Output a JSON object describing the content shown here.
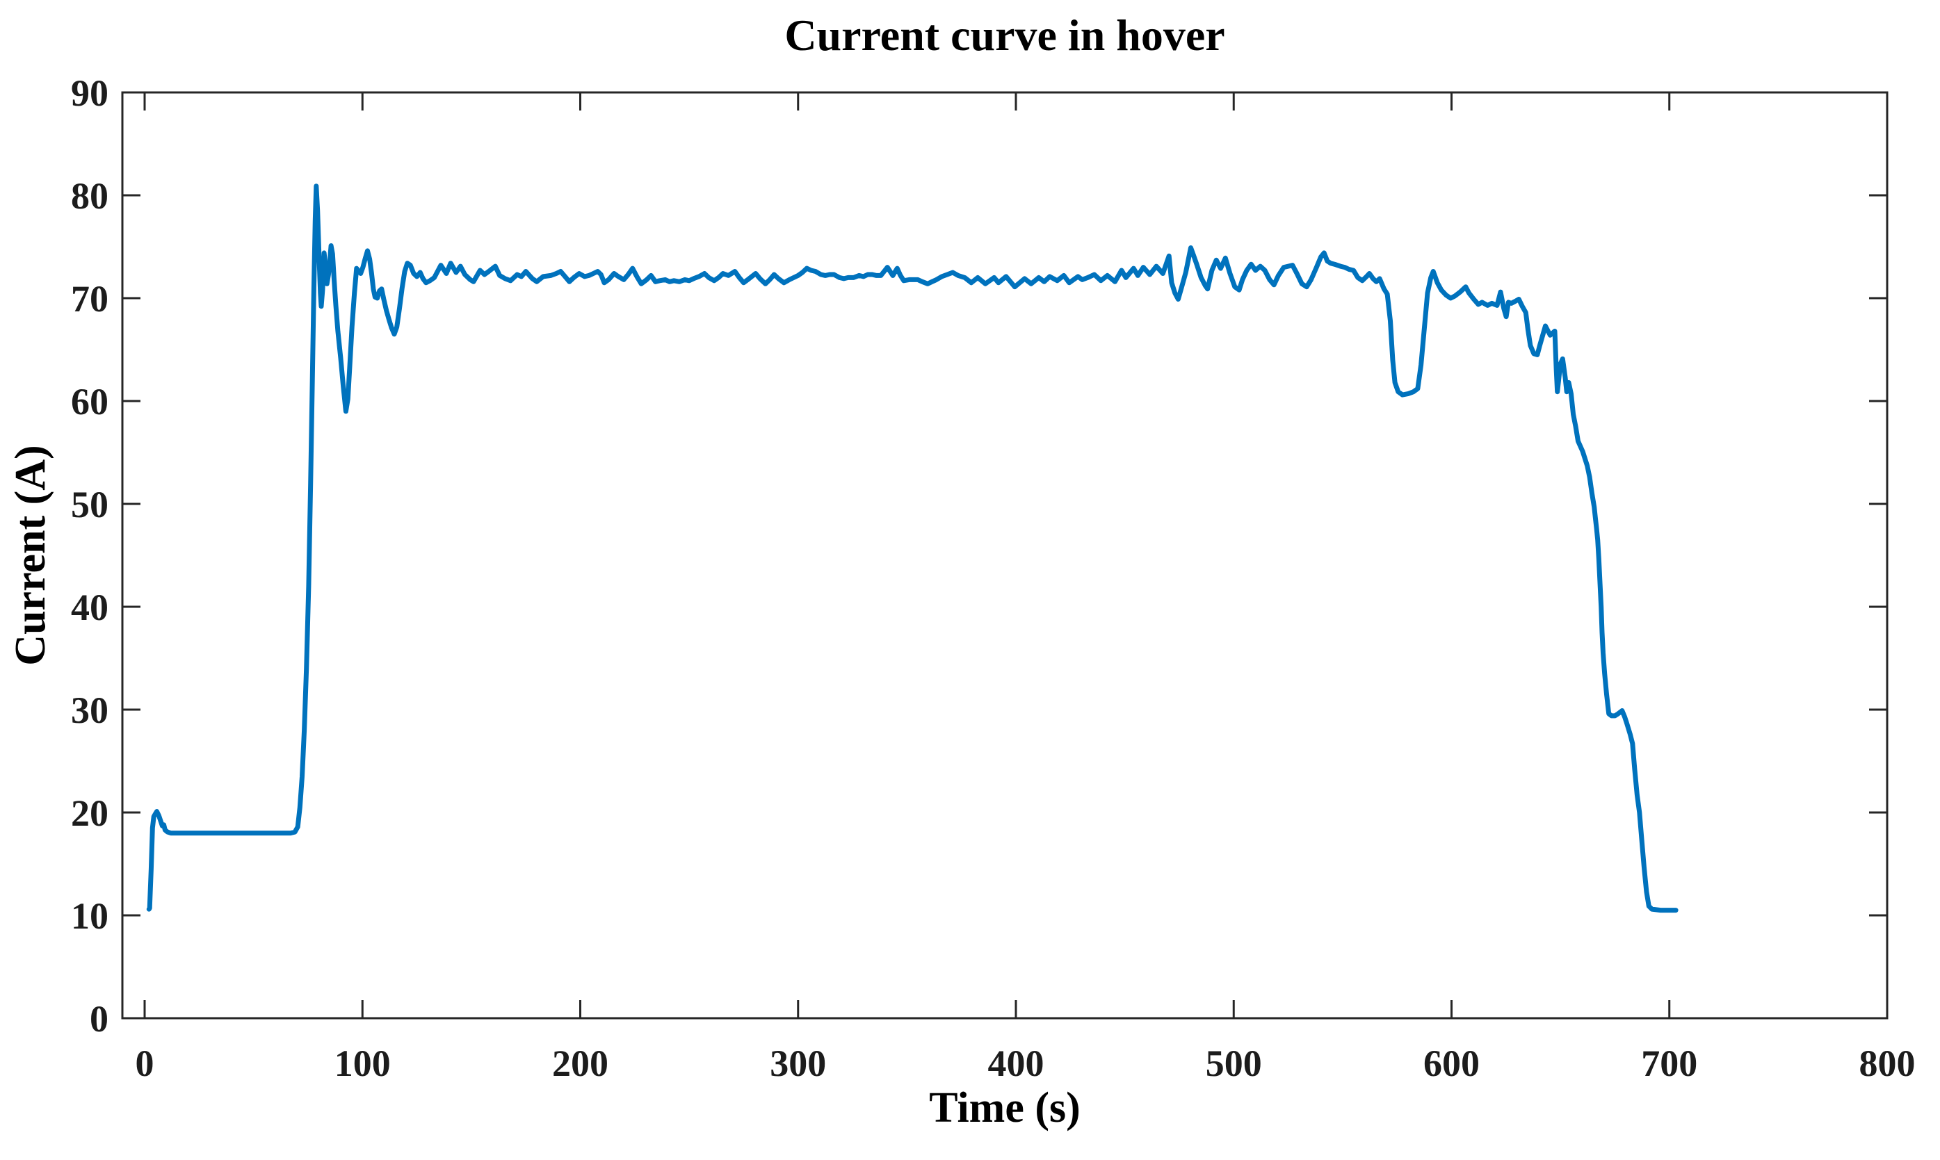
{
  "chart_data": {
    "type": "line",
    "title": "Current curve in hover",
    "xlabel": "Time (s)",
    "ylabel": "Current (A)",
    "xlim": [
      0,
      800
    ],
    "ylim": [
      0,
      90
    ],
    "xticks": [
      0,
      100,
      200,
      300,
      400,
      500,
      600,
      700,
      800
    ],
    "yticks": [
      0,
      10,
      20,
      30,
      40,
      50,
      60,
      70,
      80,
      90
    ],
    "grid": false,
    "legend": null,
    "line_color": "#0072BD",
    "axis_color": "#262626",
    "series": [
      {
        "name": "current",
        "x": [
          2,
          2.3,
          3,
          3.6,
          4.2,
          5,
          5.6,
          6.5,
          7.3,
          8.1,
          8.8,
          9.4,
          10.5,
          12,
          16,
          20,
          25,
          30,
          35,
          40,
          45,
          50,
          55,
          60,
          64,
          67,
          69,
          70.3,
          71.3,
          72.3,
          73.3,
          74.3,
          75.3,
          76.2,
          77,
          77.7,
          78.3,
          78.8,
          79.4,
          80.1,
          80.7,
          81.1,
          81.7,
          82.4,
          83,
          83.7,
          84.4,
          85,
          85.6,
          86.3,
          87,
          87.8,
          88.7,
          90,
          91.2,
          92.4,
          93.3,
          94.2,
          95.2,
          96.3,
          97.3,
          98.3,
          99.2,
          100.2,
          101.2,
          102.3,
          103.3,
          104.2,
          105,
          105.8,
          106.8,
          107.8,
          108.8,
          109.8,
          111,
          112.2,
          113.4,
          114.6,
          115.8,
          117,
          118.2,
          119.4,
          120.6,
          122,
          123.5,
          125,
          126.5,
          127.8,
          129.2,
          131,
          133,
          136,
          138.5,
          140.5,
          143,
          145,
          147,
          149.5,
          151,
          154,
          156,
          158,
          161,
          163,
          165.5,
          168,
          171,
          173,
          175,
          178,
          180,
          183,
          186.5,
          189,
          191,
          193,
          195,
          197,
          199.5,
          202,
          204,
          206,
          208,
          209.5,
          211,
          213,
          215.5,
          217.5,
          220,
          222,
          224,
          226,
          228,
          230.5,
          232.5,
          234.5,
          236.5,
          239,
          241,
          243,
          245.5,
          248,
          250,
          252,
          254.5,
          257,
          259,
          261.5,
          263.5,
          265.5,
          268,
          271,
          273,
          275,
          277.5,
          280.5,
          282.5,
          285,
          287,
          289,
          291,
          293.5,
          296,
          298,
          300,
          302,
          304,
          306,
          308,
          310.5,
          312.5,
          314.5,
          316.5,
          319,
          321,
          323,
          325.5,
          328,
          330,
          332,
          334,
          336,
          338,
          341,
          343.5,
          345.5,
          347,
          348.5,
          351,
          353,
          355,
          357,
          359.5,
          361.5,
          363.5,
          366,
          368.5,
          371,
          373.5,
          376.5,
          379.5,
          382.5,
          386,
          390,
          392,
          395.5,
          399.5,
          404,
          407,
          410.5,
          413,
          415.5,
          419,
          422,
          424.5,
          428.5,
          430.5,
          433,
          436,
          439,
          442,
          445.5,
          448.5,
          450.5,
          454,
          456,
          458.5,
          461.5,
          464.5,
          467.5,
          470.3,
          471.5,
          473,
          474.5,
          476,
          478,
          480.3,
          481.5,
          483,
          485,
          487,
          488,
          490,
          492,
          494,
          496.2,
          498.3,
          500.5,
          502.5,
          504,
          506,
          508,
          510,
          512.2,
          514.3,
          516.5,
          518.5,
          520.5,
          523,
          525,
          527,
          529,
          531.3,
          533.5,
          535.5,
          538,
          540,
          541.5,
          543,
          544.5,
          546.3,
          549,
          551,
          553,
          555,
          557,
          559,
          561,
          562.3,
          564,
          565.5,
          567,
          569,
          570.5,
          571.9,
          573,
          574,
          575.5,
          577.5,
          580,
          582.5,
          584.5,
          586,
          587.5,
          589,
          590.5,
          591.6,
          593.5,
          595.3,
          597.5,
          599.6,
          601.5,
          604,
          606.5,
          608,
          610.2,
          612.3,
          614,
          616.6,
          618.5,
          620.9,
          622.5,
          624,
          625.1,
          626.1,
          627.5,
          629.3,
          630.9,
          632.5,
          634.1,
          635.1,
          636.2,
          637.8,
          639.4,
          640.5,
          643.1,
          645.3,
          647.4,
          648.1,
          648.6,
          650,
          651,
          652.2,
          652.9,
          653.8,
          654.9,
          655.9,
          657,
          658.1,
          660.2,
          662.3,
          663.4,
          664.5,
          665.5,
          666.1,
          666.6,
          667.1,
          667.6,
          668.2,
          668.7,
          669.1,
          669.6,
          670.3,
          671.2,
          672.2,
          673.5,
          675,
          676.5,
          678.3,
          679.5,
          680.4,
          682,
          683.1,
          684.1,
          685.2,
          686.3,
          687.3,
          688.4,
          689.5,
          690.6,
          692,
          694,
          696,
          698,
          700,
          702,
          703
        ],
        "y": [
          10.6,
          10.7,
          14.5,
          18.5,
          19.6,
          19.9,
          20.1,
          19.7,
          19.2,
          18.7,
          18.8,
          18.3,
          18.1,
          18,
          18,
          18,
          18,
          18,
          18,
          18,
          18,
          18,
          18,
          18,
          18,
          18,
          18.1,
          18.6,
          20.5,
          23.5,
          28,
          34,
          42,
          52,
          62,
          71,
          77.5,
          80.9,
          78.5,
          74,
          70.5,
          69.2,
          70.8,
          74.4,
          73.2,
          71.4,
          72.3,
          73.6,
          75.1,
          74.3,
          71.8,
          69.3,
          66.8,
          64.2,
          61.4,
          59,
          60.2,
          63.5,
          67.2,
          70.5,
          72.9,
          72.6,
          72.4,
          73,
          73.8,
          74.6,
          73.8,
          72.4,
          70.9,
          70.1,
          70,
          70.7,
          70.9,
          69.9,
          68.8,
          67.9,
          67.1,
          66.5,
          67.2,
          69,
          71,
          72.6,
          73.4,
          73.2,
          72.4,
          72.1,
          72.5,
          71.9,
          71.5,
          71.7,
          72,
          73.2,
          72.4,
          73.4,
          72.5,
          73.1,
          72.3,
          71.8,
          71.6,
          72.7,
          72.3,
          72.6,
          73.1,
          72.2,
          71.9,
          71.7,
          72.3,
          72.1,
          72.6,
          71.9,
          71.6,
          72.1,
          72.2,
          72.4,
          72.6,
          72.1,
          71.6,
          72,
          72.4,
          72.1,
          72.2,
          72.4,
          72.6,
          72.3,
          71.5,
          71.8,
          72.4,
          72.1,
          71.8,
          72.3,
          72.9,
          72.1,
          71.4,
          71.8,
          72.2,
          71.6,
          71.7,
          71.8,
          71.6,
          71.7,
          71.6,
          71.8,
          71.7,
          71.9,
          72.1,
          72.4,
          72,
          71.7,
          72,
          72.4,
          72.2,
          72.6,
          72,
          71.5,
          71.9,
          72.4,
          71.9,
          71.4,
          71.8,
          72.3,
          71.9,
          71.5,
          71.8,
          72,
          72.2,
          72.5,
          72.9,
          72.7,
          72.6,
          72.3,
          72.2,
          72.3,
          72.3,
          72,
          71.9,
          72,
          72,
          72.2,
          72.1,
          72.3,
          72.3,
          72.2,
          72.2,
          73,
          72.2,
          72.9,
          72.2,
          71.7,
          71.8,
          71.8,
          71.8,
          71.6,
          71.4,
          71.6,
          71.8,
          72.1,
          72.3,
          72.5,
          72.2,
          72,
          71.5,
          72,
          71.4,
          72,
          71.5,
          72.1,
          71.1,
          71.9,
          71.4,
          72,
          71.6,
          72.1,
          71.7,
          72.2,
          71.5,
          72.1,
          71.8,
          72,
          72.3,
          71.7,
          72.2,
          71.6,
          72.7,
          72,
          72.9,
          72.2,
          73,
          72.3,
          73.1,
          72.4,
          74.1,
          71.5,
          70.5,
          69.9,
          71,
          72.5,
          74.9,
          74.2,
          73.3,
          72,
          71.2,
          70.9,
          72.7,
          73.7,
          72.9,
          73.9,
          72.4,
          71.1,
          70.8,
          71.8,
          72.7,
          73.3,
          72.7,
          73.1,
          72.7,
          71.8,
          71.3,
          72.2,
          73,
          73.1,
          73.2,
          72.4,
          71.4,
          71.1,
          71.8,
          73,
          74,
          74.4,
          73.6,
          73.4,
          73.3,
          73.1,
          73,
          72.8,
          72.7,
          72,
          71.7,
          72.1,
          72.4,
          71.9,
          71.6,
          71.9,
          70.9,
          70.4,
          67.8,
          64,
          61.8,
          60.9,
          60.6,
          60.7,
          60.9,
          61.2,
          63.5,
          67,
          70.5,
          72,
          72.6,
          71.5,
          70.8,
          70.3,
          70,
          70.2,
          70.6,
          71.1,
          70.5,
          69.9,
          69.4,
          69.6,
          69.3,
          69.5,
          69.3,
          70.6,
          69,
          68.2,
          69.6,
          69.5,
          69.7,
          69.9,
          69.2,
          68.6,
          66.9,
          65.4,
          64.6,
          64.5,
          65.4,
          67.3,
          66.4,
          66.8,
          63,
          60.9,
          63.6,
          64.1,
          62.3,
          60.9,
          61.8,
          60.7,
          58.7,
          57.5,
          56.1,
          55.1,
          53.7,
          52.6,
          51,
          49.7,
          48.5,
          47.6,
          46.5,
          44.7,
          42.2,
          40,
          37.5,
          35.5,
          33.5,
          31.5,
          29.6,
          29.4,
          29.4,
          29.6,
          29.9,
          29.3,
          28.7,
          27.6,
          26.7,
          24.2,
          21.7,
          20,
          17.4,
          14.7,
          12.3,
          10.9,
          10.6,
          10.55,
          10.5,
          10.5,
          10.5,
          10.5,
          10.5
        ]
      }
    ]
  }
}
